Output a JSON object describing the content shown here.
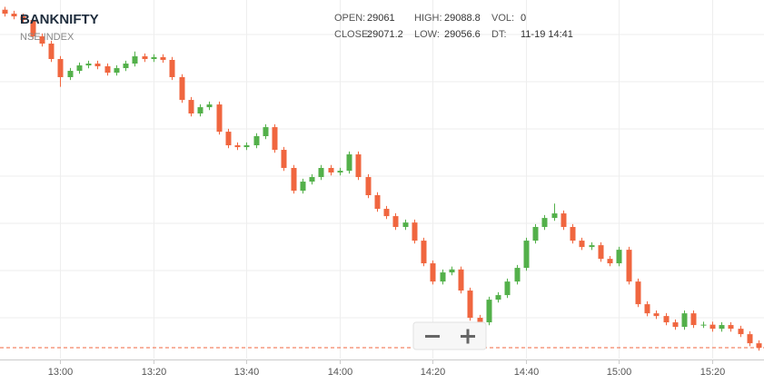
{
  "chart_data": {
    "type": "candlestick",
    "symbol": "BANKNIFTY",
    "exchange": "NSE INDEX",
    "info": [
      {
        "label": "OPEN:",
        "value": "29061"
      },
      {
        "label": "HIGH:",
        "value": "29088.8"
      },
      {
        "label": "VOL:",
        "value": "0"
      },
      {
        "label": "CLOSE:",
        "value": "29071.2"
      },
      {
        "label": "LOW:",
        "value": "29056.6"
      },
      {
        "label": "DT:",
        "value": "11-19 14:41"
      }
    ],
    "x": [
      "12:48",
      "12:50",
      "12:52",
      "12:54",
      "12:56",
      "12:58",
      "13:00",
      "13:02",
      "13:04",
      "13:06",
      "13:08",
      "13:10",
      "13:12",
      "13:14",
      "13:16",
      "13:18",
      "13:20",
      "13:22",
      "13:24",
      "13:26",
      "13:28",
      "13:30",
      "13:32",
      "13:34",
      "13:36",
      "13:38",
      "13:40",
      "13:42",
      "13:44",
      "13:46",
      "13:48",
      "13:50",
      "13:52",
      "13:54",
      "13:56",
      "13:58",
      "14:00",
      "14:02",
      "14:04",
      "14:06",
      "14:08",
      "14:10",
      "14:12",
      "14:14",
      "14:16",
      "14:18",
      "14:20",
      "14:22",
      "14:24",
      "14:26",
      "14:28",
      "14:30",
      "14:32",
      "14:34",
      "14:36",
      "14:38",
      "14:40",
      "14:42",
      "14:44",
      "14:46",
      "14:48",
      "14:50",
      "14:52",
      "14:54",
      "14:56",
      "14:58",
      "15:00",
      "15:02",
      "15:04",
      "15:06",
      "15:08",
      "15:10",
      "15:12",
      "15:14",
      "15:16",
      "15:18",
      "15:20",
      "15:22",
      "15:24",
      "15:26",
      "15:28",
      "15:30"
    ],
    "open": [
      29420.0,
      29415.9,
      29413.1,
      29409.4,
      29392.5,
      29385.0,
      29369.1,
      29350.4,
      29356.9,
      29362.5,
      29364.4,
      29361.6,
      29355.0,
      29359.7,
      29364.4,
      29371.9,
      29369.1,
      29371.0,
      29368.2,
      29350.4,
      29326.9,
      29312.9,
      29319.4,
      29322.2,
      29294.1,
      29280.1,
      29278.2,
      29280.1,
      29289.5,
      29298.8,
      29275.4,
      29256.7,
      29233.2,
      29242.6,
      29247.3,
      29256.7,
      29252.0,
      29253.8,
      29270.7,
      29247.3,
      29228.6,
      29214.5,
      29207.0,
      29195.8,
      29200.4,
      29181.7,
      29158.3,
      29139.5,
      29148.9,
      29152.0,
      29130.2,
      29102.1,
      29097.4,
      29120.8,
      29125.5,
      29139.5,
      29153.6,
      29181.7,
      29195.8,
      29205.1,
      29209.8,
      29195.8,
      29181.7,
      29175.1,
      29177.0,
      29162.9,
      29158.3,
      29172.3,
      29139.5,
      29116.1,
      29106.7,
      29103.9,
      29097.4,
      29092.7,
      29106.7,
      29094.6,
      29095.0,
      29090.8,
      29094.6,
      29090.8,
      29085.2,
      29075.8
    ],
    "high": [
      29423.0,
      29418.9,
      29416.1,
      29412.4,
      29395.5,
      29388.0,
      29372.1,
      29359.9,
      29365.5,
      29367.4,
      29367.4,
      29364.6,
      29362.7,
      29367.4,
      29376.9,
      29374.9,
      29374.0,
      29374.0,
      29371.2,
      29353.4,
      29329.9,
      29322.4,
      29325.2,
      29325.2,
      29297.1,
      29283.1,
      29283.1,
      29292.5,
      29301.8,
      29301.8,
      29278.4,
      29259.7,
      29245.6,
      29250.3,
      29259.7,
      29259.7,
      29256.8,
      29273.7,
      29273.7,
      29250.3,
      29231.6,
      29217.5,
      29210.0,
      29203.4,
      29203.4,
      29184.7,
      29161.3,
      29151.9,
      29155.0,
      29155.0,
      29133.2,
      29105.1,
      29123.8,
      29128.5,
      29142.5,
      29156.6,
      29184.7,
      29198.8,
      29208.1,
      29220.0,
      29212.8,
      29198.8,
      29184.7,
      29180.0,
      29180.0,
      29165.9,
      29175.3,
      29175.3,
      29142.5,
      29119.1,
      29109.7,
      29106.9,
      29100.4,
      29109.7,
      29109.7,
      29098.0,
      29098.0,
      29097.6,
      29097.6,
      29093.8,
      29088.2,
      29078.8
    ],
    "low": [
      29412.9,
      29410.1,
      29406.4,
      29389.5,
      29382.0,
      29366.1,
      29340.4,
      29347.4,
      29353.9,
      29359.5,
      29358.6,
      29352.0,
      29352.0,
      29356.7,
      29361.4,
      29366.1,
      29366.1,
      29365.2,
      29347.4,
      29323.9,
      29309.9,
      29309.9,
      29316.4,
      29291.1,
      29277.1,
      29275.2,
      29275.2,
      29277.1,
      29286.5,
      29272.4,
      29253.7,
      29230.2,
      29230.2,
      29239.6,
      29244.3,
      29249.0,
      29249.0,
      29250.8,
      29244.3,
      29225.6,
      29211.5,
      29204.0,
      29192.8,
      29192.8,
      29178.7,
      29155.3,
      29136.5,
      29136.5,
      29145.9,
      29127.2,
      29099.1,
      29094.4,
      29094.4,
      29117.8,
      29122.5,
      29136.5,
      29150.6,
      29178.7,
      29192.8,
      29202.1,
      29192.8,
      29178.7,
      29172.1,
      29172.1,
      29159.9,
      29155.3,
      29155.3,
      29136.5,
      29113.1,
      29103.7,
      29100.9,
      29094.4,
      29089.7,
      29089.7,
      29091.6,
      29091.6,
      29087.8,
      29087.8,
      29087.8,
      29082.2,
      29072.8,
      29068.2
    ],
    "close": [
      29415.9,
      29413.1,
      29409.4,
      29392.5,
      29385.0,
      29369.1,
      29350.4,
      29356.9,
      29362.5,
      29364.4,
      29361.6,
      29355.0,
      29359.7,
      29364.4,
      29371.9,
      29369.1,
      29371.0,
      29368.2,
      29350.4,
      29326.9,
      29312.9,
      29319.4,
      29322.2,
      29294.1,
      29280.1,
      29278.2,
      29280.1,
      29289.5,
      29298.8,
      29275.4,
      29256.7,
      29233.2,
      29242.6,
      29247.3,
      29256.7,
      29252.0,
      29253.8,
      29270.7,
      29247.3,
      29228.6,
      29214.5,
      29207.0,
      29195.8,
      29200.4,
      29181.7,
      29158.3,
      29139.5,
      29148.9,
      29152.0,
      29130.2,
      29102.1,
      29097.4,
      29120.8,
      29125.5,
      29139.5,
      29153.6,
      29181.7,
      29195.8,
      29205.1,
      29209.8,
      29195.8,
      29181.7,
      29175.1,
      29177.0,
      29162.9,
      29158.3,
      29172.3,
      29139.5,
      29116.1,
      29106.7,
      29103.9,
      29097.4,
      29092.7,
      29106.7,
      29094.6,
      29095.0,
      29090.8,
      29094.6,
      29090.8,
      29085.2,
      29075.8,
      29071.2
    ],
    "up_color": "#53b04a",
    "down_color": "#f0663f",
    "ylim": [
      29060,
      29430
    ],
    "xticks": [
      "13:00",
      "13:20",
      "13:40",
      "14:00",
      "14:20",
      "14:40",
      "15:00",
      "15:20"
    ],
    "grid": true
  }
}
